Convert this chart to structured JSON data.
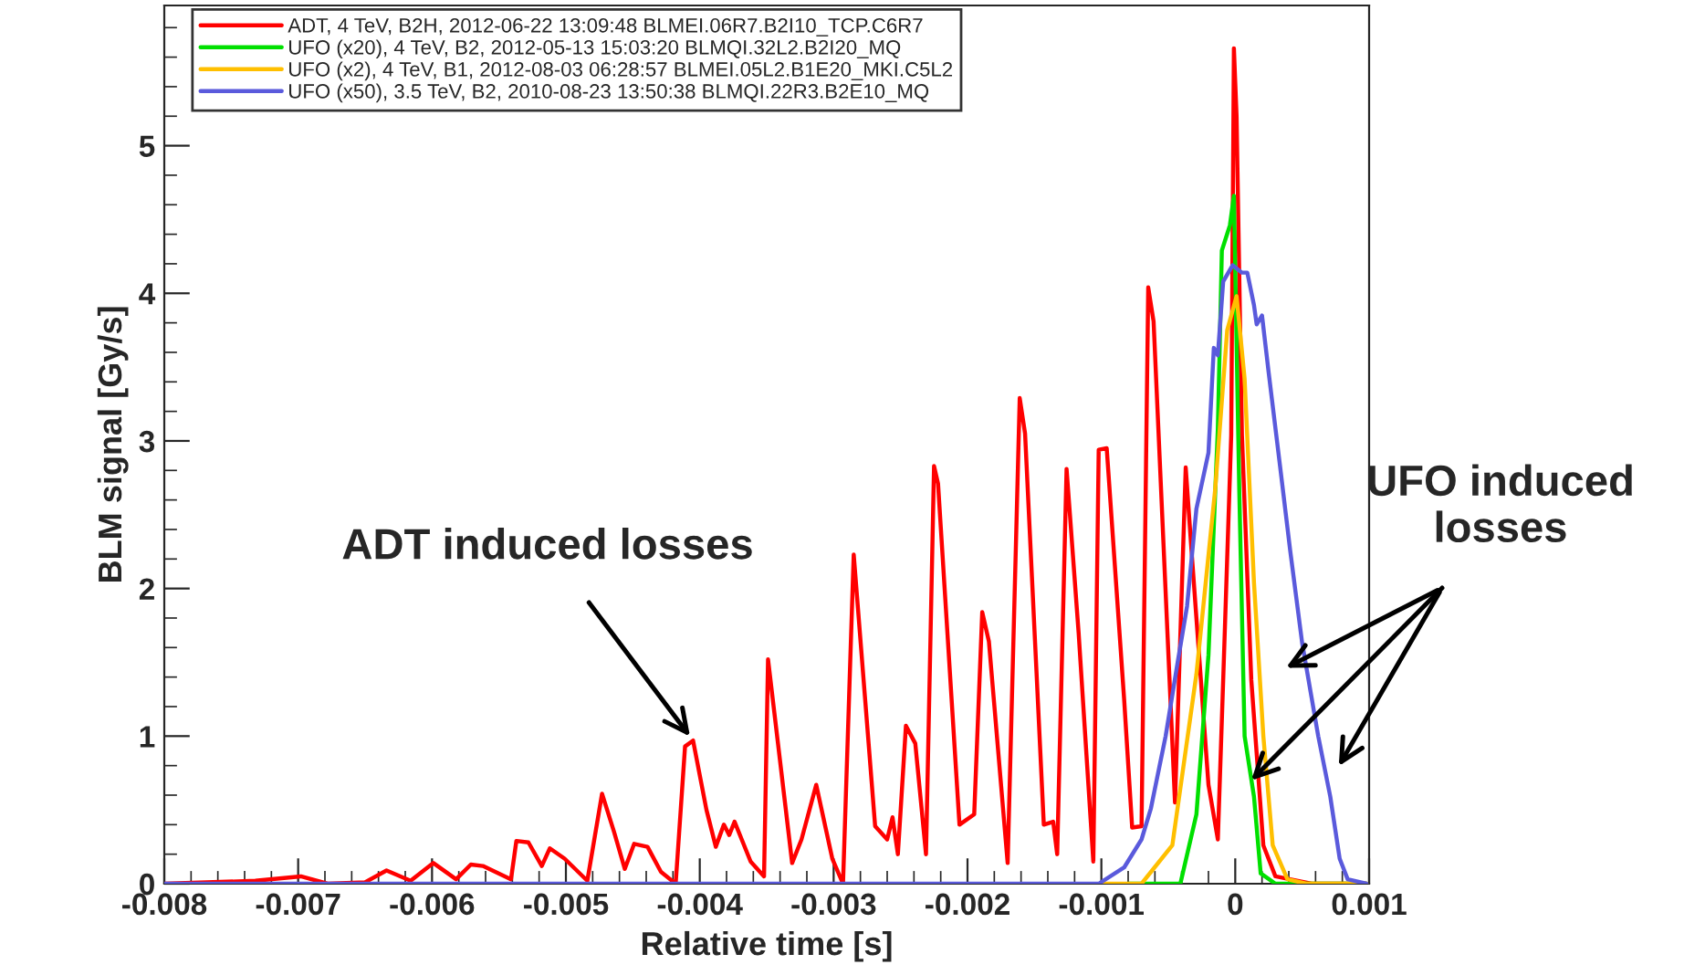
{
  "chart_data": {
    "type": "line",
    "xlabel": "Relative time [s]",
    "ylabel": "BLM signal [Gy/s]",
    "xlim": [
      -0.008,
      0.001
    ],
    "xticks": [
      -0.008,
      -0.007,
      -0.006,
      -0.005,
      -0.004,
      -0.003,
      -0.002,
      -0.001,
      0,
      0.001
    ],
    "ylim": [
      0,
      5.95
    ],
    "yticks": [
      0,
      1,
      2,
      3,
      4,
      5
    ],
    "grid": false,
    "legend": "top left",
    "line_style": "solid",
    "series": [
      {
        "name": "ADT, 4 TeV, B2H, 2012-06-22 13:09:48 BLMEI.06R7.B2I10_TCP.C6R7",
        "color": "#ff0000",
        "x": [
          -0.008,
          -0.00732,
          -0.00698,
          -0.00678,
          -0.0065,
          -0.00634,
          -0.00616,
          -0.00599,
          -0.00582,
          -0.00571,
          -0.00562,
          -0.00541,
          -0.00537,
          -0.00528,
          -0.00518,
          -0.00512,
          -0.00501,
          -0.00484,
          -0.00473,
          -0.00464,
          -0.00456,
          -0.00449,
          -0.00439,
          -0.00429,
          -0.00418,
          -0.00411,
          -0.00405,
          -0.00395,
          -0.00388,
          -0.00382,
          -0.00378,
          -0.00374,
          -0.00362,
          -0.00352,
          -0.00349,
          -0.00331,
          -0.00324,
          -0.00313,
          -0.00301,
          -0.00293,
          -0.00285,
          -0.00269,
          -0.0026,
          -0.00256,
          -0.00252,
          -0.00246,
          -0.00239,
          -0.00231,
          -0.00225,
          -0.00222,
          -0.00206,
          -0.00195,
          -0.00189,
          -0.00184,
          -0.0017,
          -0.00161,
          -0.00157,
          -0.00143,
          -0.00136,
          -0.00133,
          -0.00126,
          -0.00117,
          -0.00106,
          -0.00102,
          -0.00096,
          -0.00083,
          -0.00077,
          -0.0007,
          -0.00065,
          -0.00061,
          -0.00045,
          -0.00037,
          -0.00033,
          -0.0002,
          -0.00013,
          -9e-05,
          -3e-05,
          -1e-05,
          1e-05,
          5e-05,
          0.00012,
          0.00021,
          0.0003,
          0.00057,
          0.00098
        ],
        "values": [
          0,
          0.02,
          0.05,
          0,
          0.01,
          0.09,
          0.02,
          0.14,
          0.03,
          0.13,
          0.12,
          0.03,
          0.29,
          0.28,
          0.12,
          0.24,
          0.17,
          0.02,
          0.61,
          0.35,
          0.1,
          0.27,
          0.25,
          0.08,
          0,
          0.93,
          0.97,
          0.5,
          0.25,
          0.4,
          0.33,
          0.42,
          0.15,
          0.05,
          1.52,
          0.14,
          0.3,
          0.67,
          0.17,
          0,
          2.23,
          0.39,
          0.3,
          0.45,
          0.2,
          1.07,
          0.95,
          0.2,
          2.83,
          2.71,
          0.4,
          0.47,
          1.84,
          1.64,
          0.14,
          3.29,
          3.05,
          0.4,
          0.42,
          0.2,
          2.81,
          1.7,
          0.15,
          2.94,
          2.95,
          1.25,
          0.38,
          0.39,
          4.04,
          3.81,
          0.55,
          2.82,
          2.3,
          0.67,
          0.3,
          1.38,
          3.04,
          5.66,
          5.2,
          3.04,
          1.38,
          0.26,
          0.05,
          0,
          0
        ]
      },
      {
        "name": "UFO (x20), 4 TeV, B2, 2012-05-13 15:03:20 BLMQI.32L2.B2I20_MQ",
        "color": "#00e000",
        "x": [
          -0.0008,
          -0.00041,
          -0.00029,
          -0.0002,
          -0.00013,
          -0.0001,
          -4e-05,
          -1e-05,
          3e-05,
          7e-05,
          0.00014,
          0.00019,
          0.0003,
          0.00098
        ],
        "values": [
          0,
          0,
          0.47,
          1.55,
          3.08,
          4.29,
          4.46,
          4.66,
          2.67,
          1.0,
          0.59,
          0.07,
          0,
          0
        ]
      },
      {
        "name": "UFO (x2), 4 TeV, B1, 2012-08-03 06:28:57 BLMEI.05L2.B1E20_MKI.C5L2",
        "color": "#ffbf00",
        "x": [
          -0.001,
          -0.0007,
          -0.00047,
          -0.00029,
          -0.00015,
          -6e-05,
          1e-05,
          7e-05,
          0.00014,
          0.00021,
          0.00028,
          0.00039,
          0.00053,
          0.00098
        ],
        "values": [
          0,
          0,
          0.26,
          1.42,
          2.67,
          3.75,
          3.98,
          3.42,
          2.04,
          1.0,
          0.26,
          0.03,
          0,
          0
        ]
      },
      {
        "name": "UFO (x50), 3.5 TeV, B2, 2010-08-23 13:50:38 BLMQI.22R3.B2E10_MQ",
        "color": "#5a5adc",
        "x": [
          -0.008,
          -0.00102,
          -0.00083,
          -0.0007,
          -0.00063,
          -0.00052,
          -0.00043,
          -0.00036,
          -0.00029,
          -0.0002,
          -0.00016,
          -0.00013,
          -9e-05,
          -2e-05,
          5e-05,
          9e-05,
          0.00014,
          0.00016,
          0.0002,
          0.00025,
          0.00034,
          0.00041,
          0.0005,
          0.00062,
          0.00071,
          0.00078,
          0.00084,
          0.00098
        ],
        "values": [
          0,
          0,
          0.11,
          0.3,
          0.51,
          1.0,
          1.5,
          1.88,
          2.54,
          2.92,
          3.63,
          3.58,
          4.08,
          4.19,
          4.14,
          4.14,
          3.92,
          3.79,
          3.85,
          3.46,
          2.79,
          2.26,
          1.63,
          1.0,
          0.59,
          0.17,
          0.03,
          0
        ]
      }
    ],
    "annotations": [
      {
        "text": "ADT induced losses",
        "x": -0.00405,
        "y": 0.97
      },
      {
        "text": "UFO induced\nlosses",
        "x": 0.00012,
        "y": 0.7
      }
    ]
  }
}
